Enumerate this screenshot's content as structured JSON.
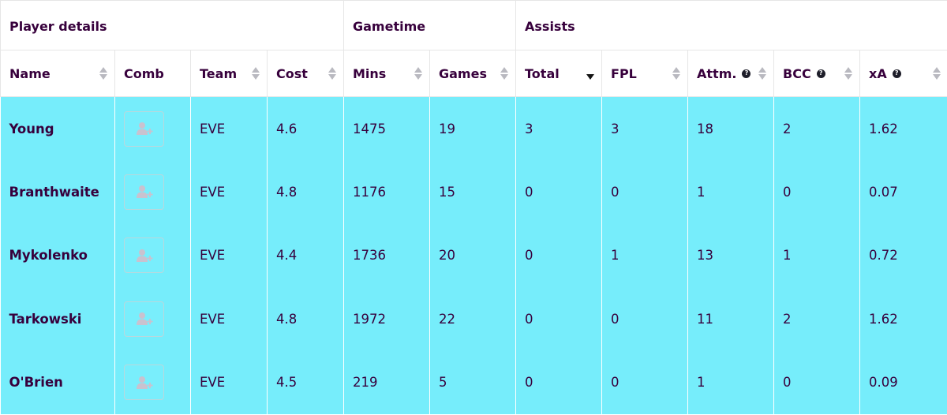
{
  "colors": {
    "row_background": "#76edfb",
    "header_background": "#ffffff",
    "text": "#37003c"
  },
  "groups": [
    {
      "label": "Player details",
      "span": 4
    },
    {
      "label": "Gametime",
      "span": 2
    },
    {
      "label": "Assists",
      "span": 5
    }
  ],
  "columns": [
    {
      "key": "name",
      "label": "Name",
      "sortable": true,
      "info": false
    },
    {
      "key": "comb",
      "label": "Comb",
      "sortable": false,
      "info": false
    },
    {
      "key": "team",
      "label": "Team",
      "sortable": true,
      "info": false
    },
    {
      "key": "cost",
      "label": "Cost",
      "sortable": true,
      "info": false
    },
    {
      "key": "mins",
      "label": "Mins",
      "sortable": true,
      "info": false
    },
    {
      "key": "games",
      "label": "Games",
      "sortable": true,
      "info": false
    },
    {
      "key": "total",
      "label": "Total",
      "sortable": true,
      "info": false,
      "sorted": "desc"
    },
    {
      "key": "fpl",
      "label": "FPL",
      "sortable": true,
      "info": false
    },
    {
      "key": "attm",
      "label": "Attm.",
      "sortable": true,
      "info": true
    },
    {
      "key": "bcc",
      "label": "BCC",
      "sortable": true,
      "info": true
    },
    {
      "key": "xa",
      "label": "xA",
      "sortable": true,
      "info": true
    }
  ],
  "icons": {
    "sort": "sort-updown-icon",
    "info": "question-circle-icon",
    "comb": "add-user-icon"
  },
  "rows": [
    {
      "name": "Young",
      "team": "EVE",
      "cost": "4.6",
      "mins": "1475",
      "games": "19",
      "total": "3",
      "fpl": "3",
      "attm": "18",
      "bcc": "2",
      "xa": "1.62"
    },
    {
      "name": "Branthwaite",
      "team": "EVE",
      "cost": "4.8",
      "mins": "1176",
      "games": "15",
      "total": "0",
      "fpl": "0",
      "attm": "1",
      "bcc": "0",
      "xa": "0.07"
    },
    {
      "name": "Mykolenko",
      "team": "EVE",
      "cost": "4.4",
      "mins": "1736",
      "games": "20",
      "total": "0",
      "fpl": "1",
      "attm": "13",
      "bcc": "1",
      "xa": "0.72"
    },
    {
      "name": "Tarkowski",
      "team": "EVE",
      "cost": "4.8",
      "mins": "1972",
      "games": "22",
      "total": "0",
      "fpl": "0",
      "attm": "11",
      "bcc": "2",
      "xa": "1.62"
    },
    {
      "name": "O'Brien",
      "team": "EVE",
      "cost": "4.5",
      "mins": "219",
      "games": "5",
      "total": "0",
      "fpl": "0",
      "attm": "1",
      "bcc": "0",
      "xa": "0.09"
    }
  ]
}
